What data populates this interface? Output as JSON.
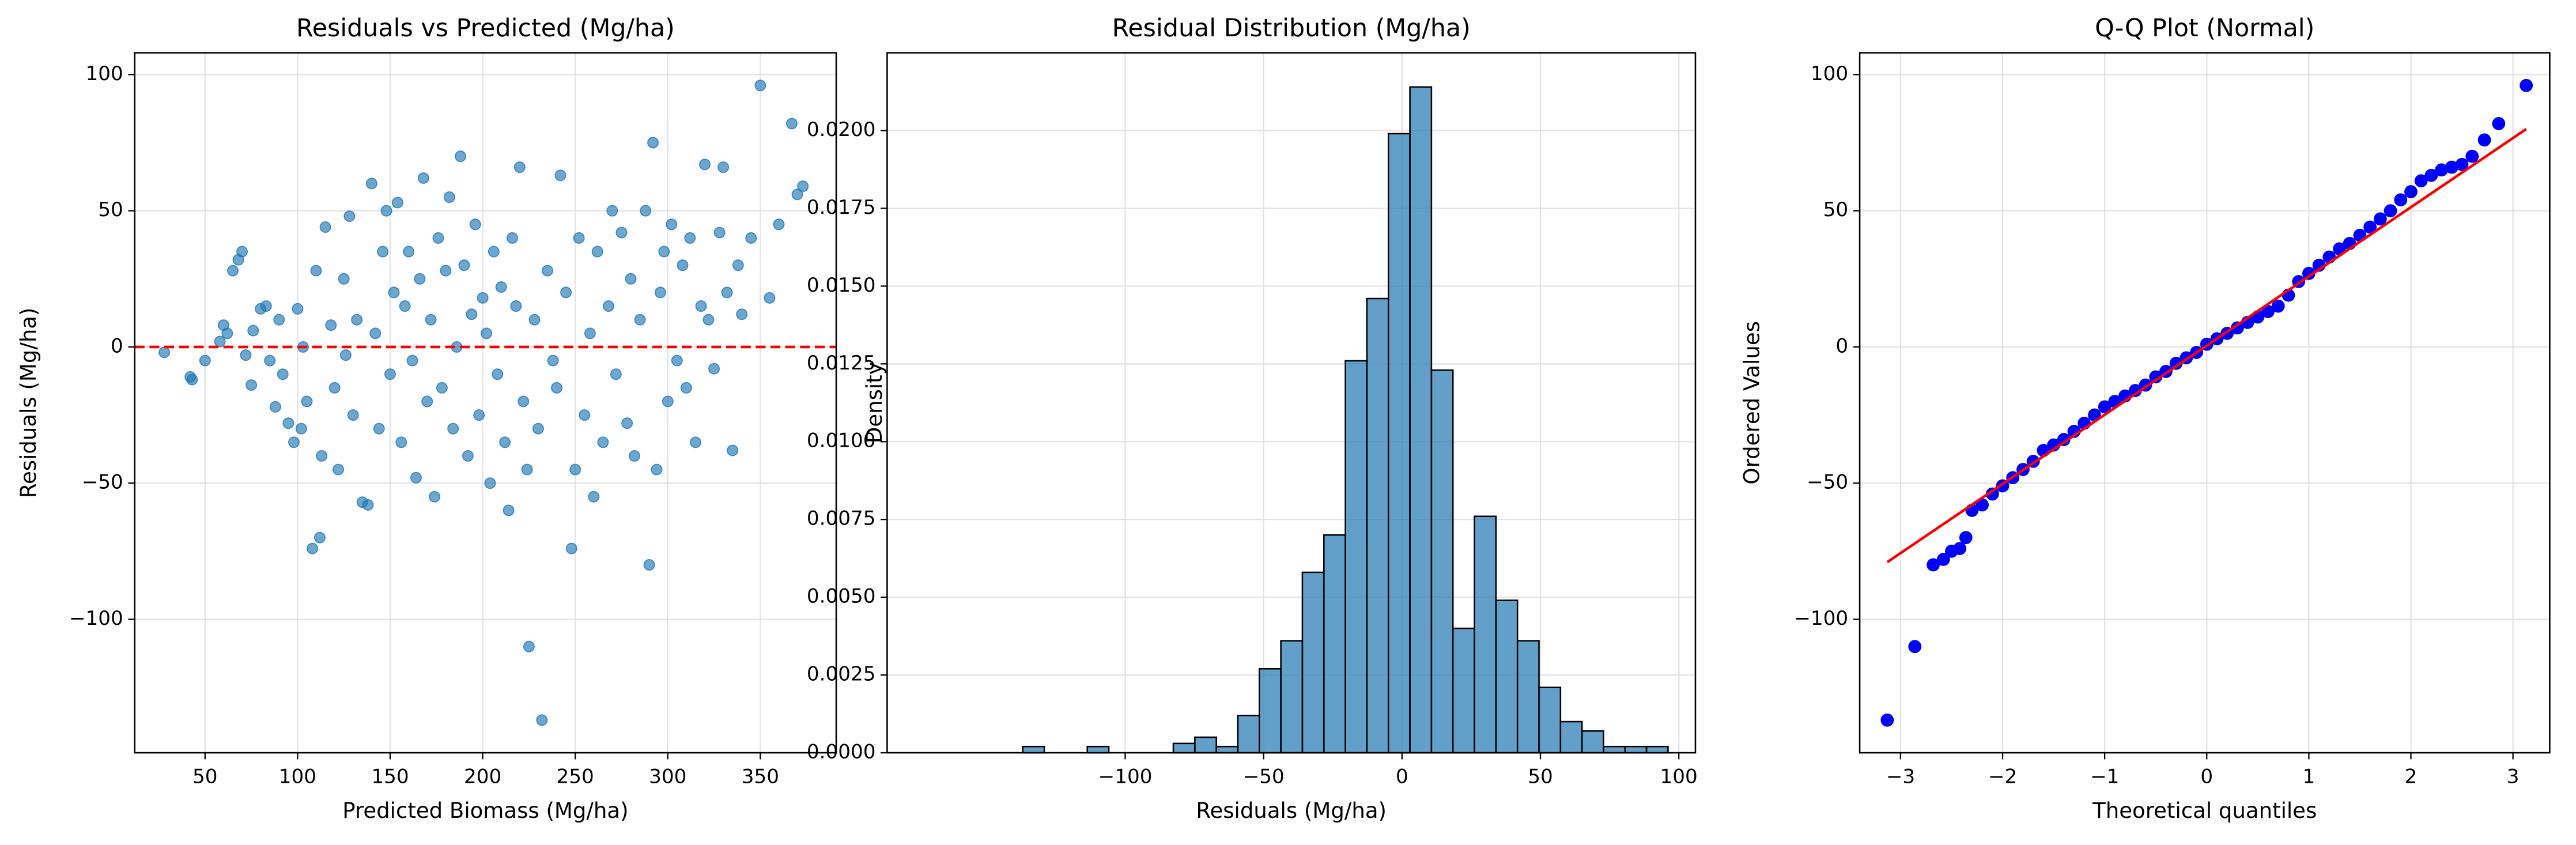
{
  "chart_data": [
    {
      "type": "scatter",
      "title": "Residuals vs Predicted (Mg/ha)",
      "xlabel": "Predicted Biomass (Mg/ha)",
      "ylabel": "Residuals (Mg/ha)",
      "color": "#1f77b4",
      "grid": true,
      "hline": 0,
      "hline_color": "#ff0000",
      "xlim": [
        12,
        391
      ],
      "ylim": [
        -149,
        108
      ],
      "xticks": [
        50,
        100,
        150,
        200,
        250,
        300,
        350
      ],
      "yticks": [
        {
          "value": -100,
          "label": "−100"
        },
        {
          "value": -50,
          "label": "−50"
        },
        0,
        50,
        100
      ],
      "x": [
        28,
        42,
        43,
        50,
        58,
        60,
        62,
        65,
        68,
        70,
        72,
        75,
        76,
        80,
        83,
        85,
        88,
        90,
        92,
        95,
        98,
        100,
        102,
        103,
        105,
        108,
        110,
        112,
        113,
        115,
        118,
        120,
        122,
        125,
        126,
        128,
        130,
        132,
        135,
        138,
        140,
        142,
        144,
        146,
        148,
        150,
        152,
        154,
        156,
        158,
        160,
        162,
        164,
        166,
        168,
        170,
        172,
        174,
        176,
        178,
        180,
        182,
        184,
        186,
        188,
        190,
        192,
        194,
        196,
        198,
        200,
        202,
        204,
        206,
        208,
        210,
        212,
        214,
        216,
        218,
        220,
        222,
        224,
        225,
        228,
        230,
        232,
        235,
        238,
        240,
        242,
        245,
        248,
        250,
        252,
        255,
        258,
        260,
        262,
        265,
        268,
        270,
        272,
        275,
        278,
        280,
        282,
        285,
        288,
        290,
        292,
        294,
        296,
        298,
        300,
        302,
        305,
        308,
        310,
        312,
        315,
        318,
        320,
        322,
        325,
        328,
        330,
        332,
        335,
        338,
        340,
        345,
        350,
        355,
        360,
        367,
        370,
        373
      ],
      "y": [
        -2,
        -11,
        -12,
        -5,
        2,
        8,
        5,
        28,
        32,
        35,
        -3,
        -14,
        6,
        14,
        15,
        -5,
        -22,
        10,
        -10,
        -28,
        -35,
        14,
        -30,
        0,
        -20,
        -74,
        28,
        -70,
        -40,
        44,
        8,
        -15,
        -45,
        25,
        -3,
        48,
        -25,
        10,
        -57,
        -58,
        60,
        5,
        -30,
        35,
        50,
        -10,
        20,
        53,
        -35,
        15,
        35,
        -5,
        -48,
        25,
        62,
        -20,
        10,
        -55,
        40,
        -15,
        28,
        55,
        -30,
        0,
        70,
        30,
        -40,
        12,
        45,
        -25,
        18,
        5,
        -50,
        35,
        -10,
        22,
        -35,
        -60,
        40,
        15,
        66,
        -20,
        -45,
        -110,
        10,
        -30,
        -137,
        28,
        -5,
        -15,
        63,
        20,
        -74,
        -45,
        40,
        -25,
        5,
        -55,
        35,
        -35,
        15,
        50,
        -10,
        42,
        -28,
        25,
        -40,
        10,
        50,
        -80,
        75,
        -45,
        20,
        35,
        -20,
        45,
        -5,
        30,
        -15,
        40,
        -35,
        15,
        67,
        10,
        -8,
        42,
        66,
        20,
        -38,
        30,
        12,
        40,
        96,
        18,
        45,
        82,
        56,
        59
      ]
    },
    {
      "type": "histogram",
      "title": "Residual Distribution (Mg/ha)",
      "xlabel": "Residuals (Mg/ha)",
      "ylabel": "Density",
      "color": "#1f77b4",
      "edgecolor": "#000000",
      "grid": true,
      "xlim": [
        -186,
        106
      ],
      "ylim": [
        0,
        0.0225
      ],
      "xticks": [
        {
          "value": -100,
          "label": "−100"
        },
        {
          "value": -50,
          "label": "−50"
        },
        0,
        50,
        100
      ],
      "yticks": [
        {
          "value": 0,
          "label": "0.0000"
        },
        {
          "value": 0.0025,
          "label": "0.0025"
        },
        {
          "value": 0.005,
          "label": "0.0050"
        },
        {
          "value": 0.0075,
          "label": "0.0075"
        },
        {
          "value": 0.01,
          "label": "0.0100"
        },
        {
          "value": 0.0125,
          "label": "0.0125"
        },
        {
          "value": 0.015,
          "label": "0.0150"
        },
        {
          "value": 0.0175,
          "label": "0.0175"
        },
        {
          "value": 0.02,
          "label": "0.0200"
        }
      ],
      "bins": [
        -137,
        -129.23,
        -121.46,
        -113.69,
        -105.92,
        -98.15,
        -90.38,
        -82.61,
        -74.84,
        -67.07,
        -59.3,
        -51.53,
        -43.76,
        -35.99,
        -28.22,
        -20.45,
        -12.68,
        -4.91,
        2.86,
        10.63,
        18.4,
        26.17,
        33.94,
        41.71,
        49.48,
        57.25,
        65.02,
        72.79,
        80.56,
        88.33,
        96.1
      ],
      "values": [
        0.0002,
        0,
        0,
        0.0002,
        0,
        0,
        0,
        0.0003,
        0.0005,
        0.0002,
        0.0012,
        0.0027,
        0.0036,
        0.0058,
        0.007,
        0.0126,
        0.0146,
        0.0199,
        0.0214,
        0.0123,
        0.004,
        0.0076,
        0.0049,
        0.0036,
        0.0021,
        0.001,
        0.0007,
        0.0002,
        0.0002,
        0.0002
      ]
    },
    {
      "type": "qq",
      "title": "Q-Q Plot (Normal)",
      "xlabel": "Theoretical quantiles",
      "ylabel": "Ordered Values",
      "color": "#0000ff",
      "line_color": "#ff0000",
      "grid": true,
      "xlim": [
        -3.4,
        3.36
      ],
      "ylim": [
        -149,
        108
      ],
      "xticks": [
        {
          "value": -3,
          "label": "−3"
        },
        {
          "value": -2,
          "label": "−2"
        },
        {
          "value": -1,
          "label": "−1"
        },
        0,
        1,
        2,
        3
      ],
      "yticks": [
        {
          "value": -100,
          "label": "−100"
        },
        {
          "value": -50,
          "label": "−50"
        },
        0,
        50,
        100
      ],
      "fit_x": [
        -3.13,
        3.13
      ],
      "fit_y": [
        -79,
        80
      ],
      "x": [
        -3.13,
        -2.86,
        -2.68,
        -2.58,
        -2.5,
        -2.42,
        -2.36,
        -2.3,
        -2.2,
        -2.1,
        -2.0,
        -1.9,
        -1.8,
        -1.7,
        -1.6,
        -1.5,
        -1.4,
        -1.3,
        -1.2,
        -1.1,
        -1.0,
        -0.9,
        -0.8,
        -0.7,
        -0.6,
        -0.5,
        -0.4,
        -0.3,
        -0.2,
        -0.1,
        0,
        0.1,
        0.2,
        0.3,
        0.4,
        0.5,
        0.6,
        0.7,
        0.8,
        0.9,
        1.0,
        1.1,
        1.2,
        1.3,
        1.4,
        1.5,
        1.6,
        1.7,
        1.8,
        1.9,
        2.0,
        2.1,
        2.2,
        2.3,
        2.4,
        2.5,
        2.6,
        2.72,
        2.86,
        3.13
      ],
      "y": [
        -137,
        -110,
        -80,
        -78,
        -75,
        -74,
        -70,
        -60,
        -58,
        -54,
        -51,
        -48,
        -45,
        -42,
        -38,
        -36,
        -34,
        -31,
        -28,
        -25,
        -22,
        -20,
        -18,
        -16,
        -14,
        -11,
        -9,
        -6,
        -4,
        -2,
        1,
        3,
        5,
        7,
        9,
        11,
        13,
        15,
        19,
        24,
        27,
        30,
        33,
        36,
        38,
        41,
        44,
        47,
        50,
        54,
        57,
        61,
        63,
        65,
        66,
        67,
        70,
        76,
        82,
        96
      ]
    }
  ]
}
